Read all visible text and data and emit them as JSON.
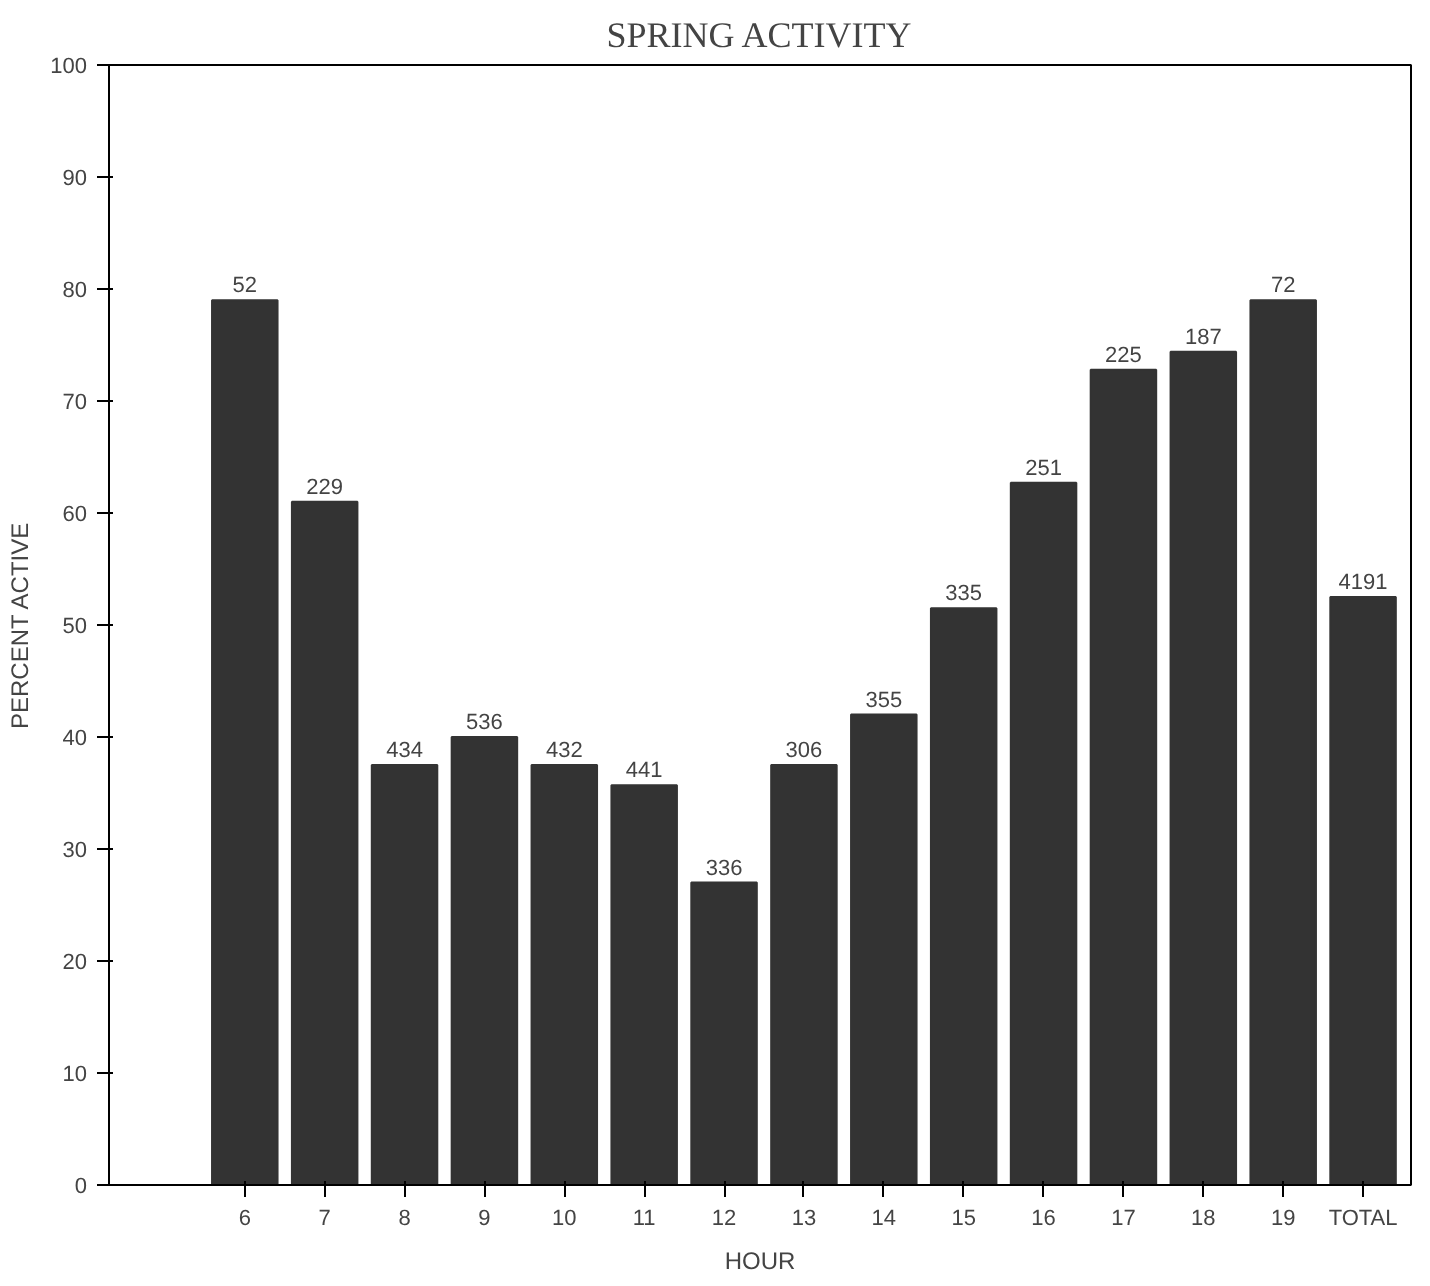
{
  "chart_data": {
    "type": "bar",
    "title": "SPRING ACTIVITY",
    "xlabel": "HOUR",
    "ylabel": "PERCENT ACTIVE",
    "categories": [
      "6",
      "7",
      "8",
      "9",
      "10",
      "11",
      "12",
      "13",
      "14",
      "15",
      "16",
      "17",
      "18",
      "19",
      "TOTAL"
    ],
    "values": [
      79,
      61,
      37.5,
      40,
      37.5,
      35.7,
      27,
      37.5,
      42,
      51.5,
      62.7,
      72.8,
      74.4,
      79,
      52.5
    ],
    "annotations": [
      {
        "text": "52",
        "x": "6",
        "y": 79
      },
      {
        "text": "229",
        "x": "7",
        "y": 61
      },
      {
        "text": "434",
        "x": "8",
        "y": 37.5
      },
      {
        "text": "536",
        "x": "9",
        "y": 40
      },
      {
        "text": "432",
        "x": "10",
        "y": 37.5
      },
      {
        "text": "441",
        "x": "11",
        "y": 35.7
      },
      {
        "text": "336",
        "x": "12",
        "y": 27
      },
      {
        "text": "306",
        "x": "13",
        "y": 37.5
      },
      {
        "text": "355",
        "x": "14",
        "y": 42
      },
      {
        "text": "335",
        "x": "15",
        "y": 51.5
      },
      {
        "text": "251",
        "x": "16",
        "y": 62.7
      },
      {
        "text": "225",
        "x": "17",
        "y": 72.8
      },
      {
        "text": "187",
        "x": "18",
        "y": 74.4
      },
      {
        "text": "72",
        "x": "19",
        "y": 79
      },
      {
        "text": "4191",
        "x": "TOTAL",
        "y": 52.5
      }
    ],
    "color": "#333333",
    "ylim": [
      0,
      100
    ],
    "yticks": [
      0,
      10,
      20,
      30,
      40,
      50,
      60,
      70,
      80,
      90,
      100
    ],
    "grid": false
  }
}
